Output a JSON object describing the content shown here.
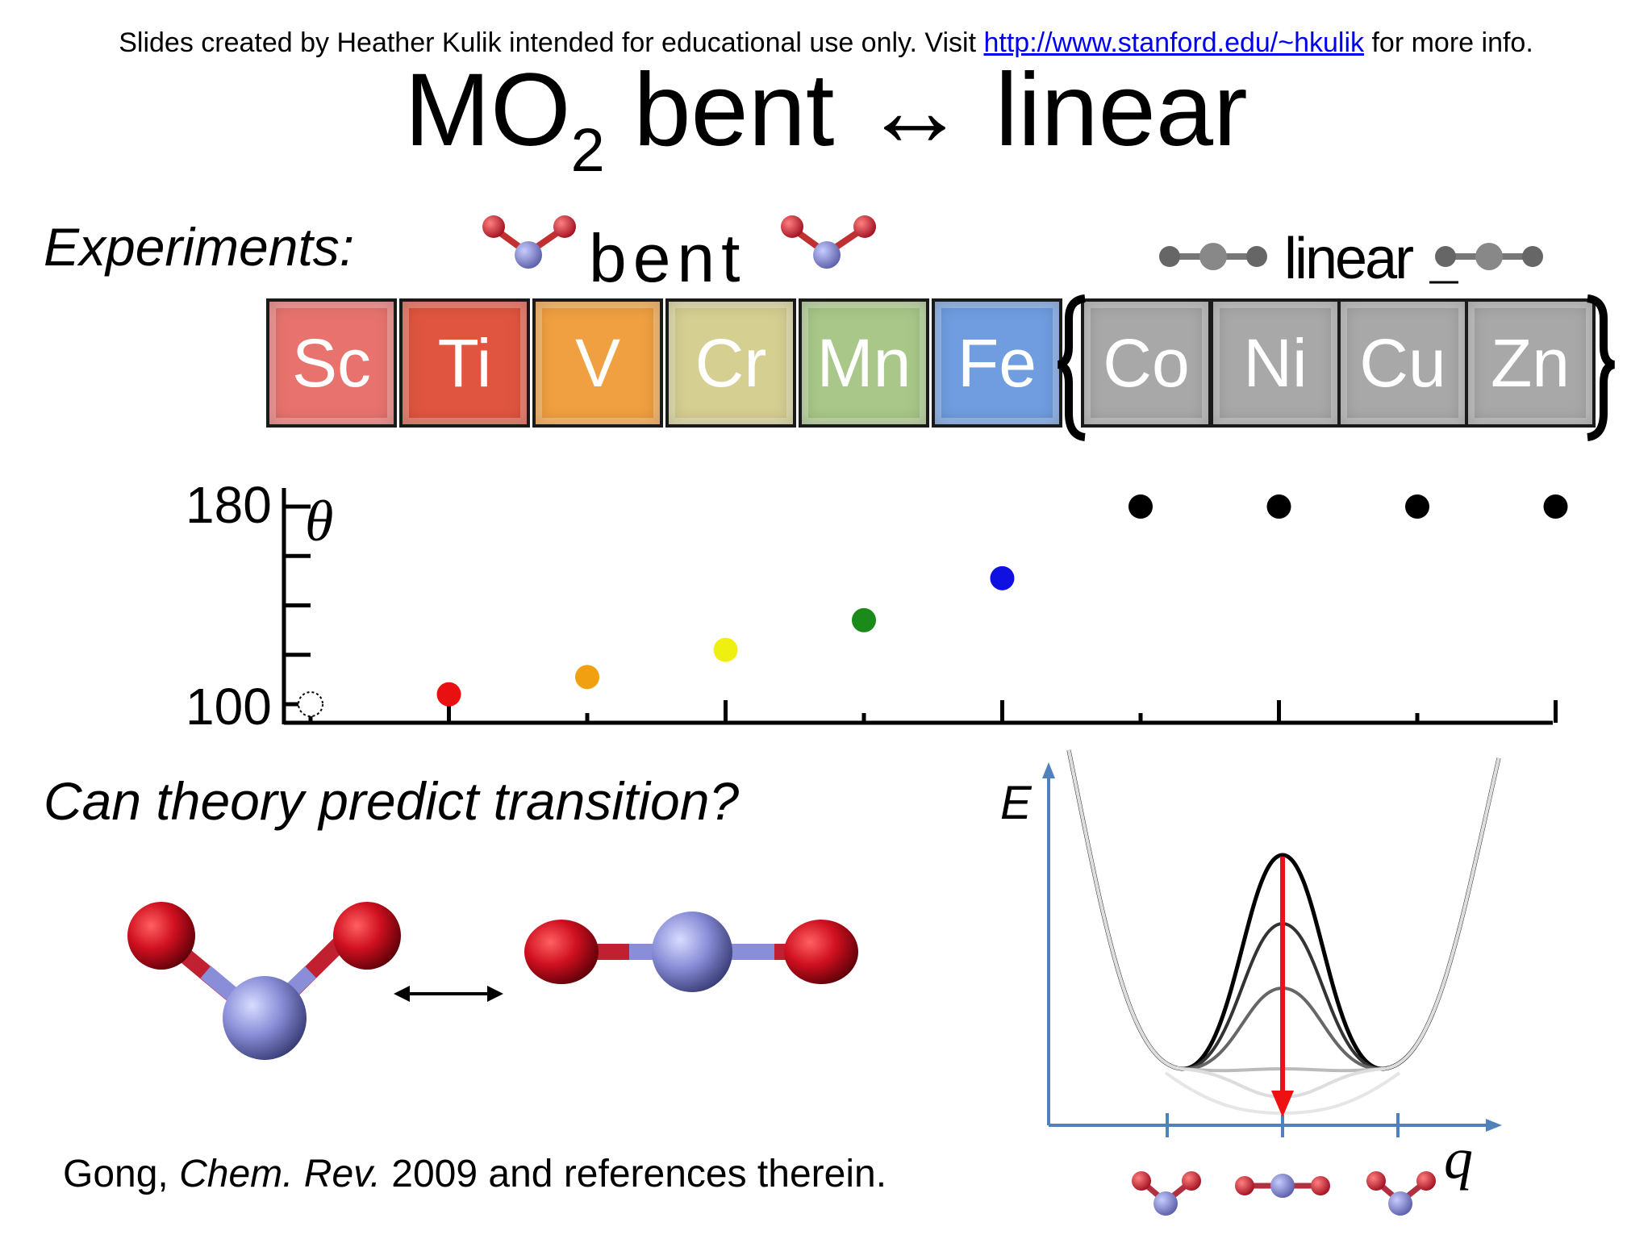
{
  "credit": {
    "prefix": "Slides created by Heather Kulik intended for educational use only. Visit ",
    "link": "http://www.stanford.edu/~hkulik",
    "suffix": " for more info."
  },
  "title": {
    "main": "MO",
    "subscript": "2",
    "rest": " bent ↔ linear"
  },
  "experiments_label": "Experiments:",
  "bent_label": "bent",
  "linear_label": "linear",
  "elements": [
    {
      "symbol": "Sc",
      "color": "#e8736e",
      "group": "bent"
    },
    {
      "symbol": "Ti",
      "color": "#e0553f",
      "group": "bent"
    },
    {
      "symbol": "V",
      "color": "#f0a040",
      "group": "bent"
    },
    {
      "symbol": "Cr",
      "color": "#d6cf92",
      "group": "bent"
    },
    {
      "symbol": "Mn",
      "color": "#a8c788",
      "group": "bent"
    },
    {
      "symbol": "Fe",
      "color": "#6f9de0",
      "group": "bent"
    },
    {
      "symbol": "Co",
      "color": "#a8a8a8",
      "group": "linear"
    },
    {
      "symbol": "Ni",
      "color": "#a8a8a8",
      "group": "linear"
    },
    {
      "symbol": "Cu",
      "color": "#a8a8a8",
      "group": "linear"
    },
    {
      "symbol": "Zn",
      "color": "#a8a8a8",
      "group": "linear"
    }
  ],
  "chart_data": {
    "type": "scatter",
    "ylabel": "θ",
    "yticks": [
      "100",
      "180"
    ],
    "ylim": [
      100,
      180
    ],
    "x": [
      "Sc",
      "Ti",
      "V",
      "Cr",
      "Mn",
      "Fe",
      "Co",
      "Ni",
      "Cu",
      "Zn"
    ],
    "y": [
      100,
      104,
      111,
      122,
      134,
      151,
      180,
      180,
      180,
      180
    ],
    "colors": [
      "#ffffff",
      "#e81010",
      "#f0a010",
      "#f0f010",
      "#1a8a1a",
      "#1010e0",
      "#000000",
      "#000000",
      "#000000",
      "#000000"
    ]
  },
  "question": "Can theory predict transition?",
  "energy_plot": {
    "ylabel": "E",
    "xlabel": "q",
    "curve_colors": [
      "#000000",
      "#333333",
      "#666666",
      "#bbbbbb",
      "#dddddd"
    ],
    "arrow_color": "#ee1111",
    "axis_color": "#4f81bd"
  },
  "citation": {
    "author": "Gong, ",
    "journal": "Chem. Rev.",
    "rest": " 2009 and references therein."
  },
  "molecule_colors": {
    "metal": "#8a8ed8",
    "oxygen": "#d01020"
  }
}
